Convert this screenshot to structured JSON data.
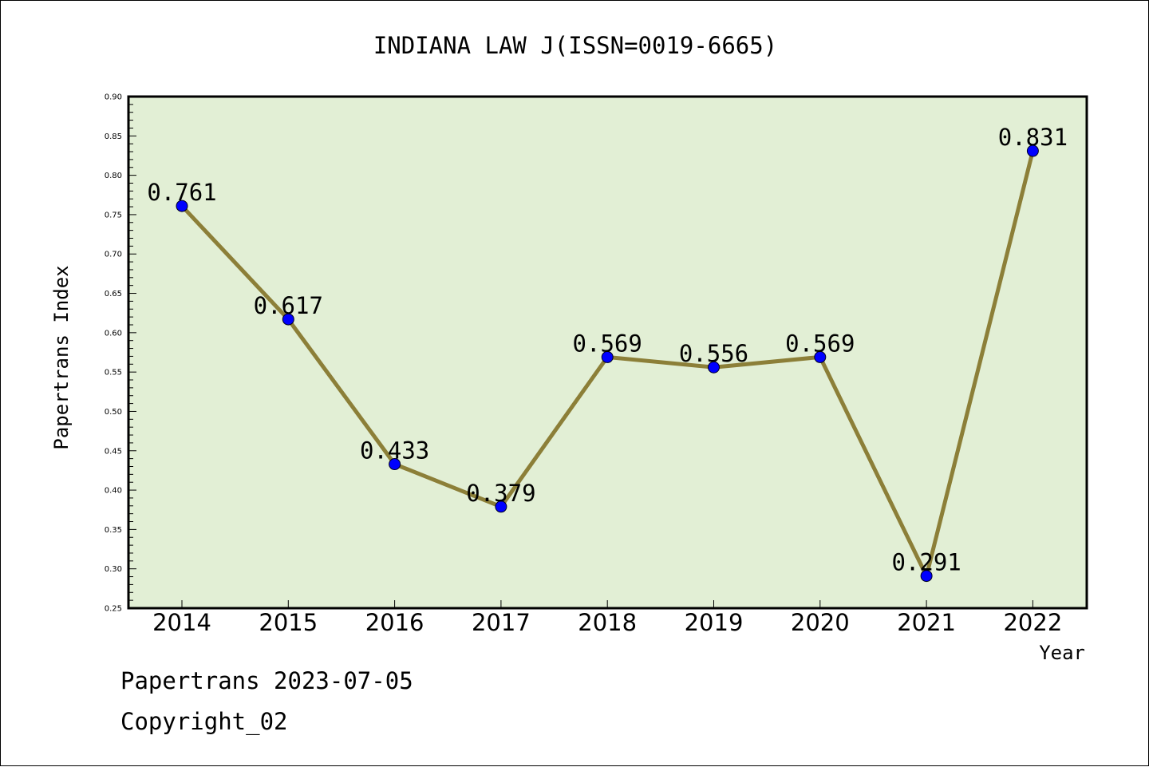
{
  "chart_data": {
    "type": "line",
    "title": "INDIANA LAW J(ISSN=0019-6665)",
    "xlabel": "Year",
    "ylabel": "Papertrans Index",
    "categories": [
      "2014",
      "2015",
      "2016",
      "2017",
      "2018",
      "2019",
      "2020",
      "2021",
      "2022"
    ],
    "series": [
      {
        "values": [
          0.761,
          0.617,
          0.433,
          0.379,
          0.569,
          0.556,
          0.569,
          0.291,
          0.831
        ]
      }
    ],
    "data_labels": [
      "0.761",
      "0.617",
      "0.433",
      "0.379",
      "0.569",
      "0.556",
      "0.569",
      "0.291",
      "0.831"
    ],
    "ylim": [
      0.25,
      0.9
    ],
    "yticks": [
      "0.25",
      "0.30",
      "0.35",
      "0.40",
      "0.45",
      "0.50",
      "0.55",
      "0.60",
      "0.65",
      "0.70",
      "0.75",
      "0.80",
      "0.85",
      "0.90"
    ],
    "grid": false,
    "colors": {
      "plot_background": "#e2efd5",
      "line": "#8c7f38",
      "marker": "#0000ff"
    }
  },
  "footer": {
    "line1": "Papertrans 2023-07-05",
    "line2": "Copyright_02"
  }
}
